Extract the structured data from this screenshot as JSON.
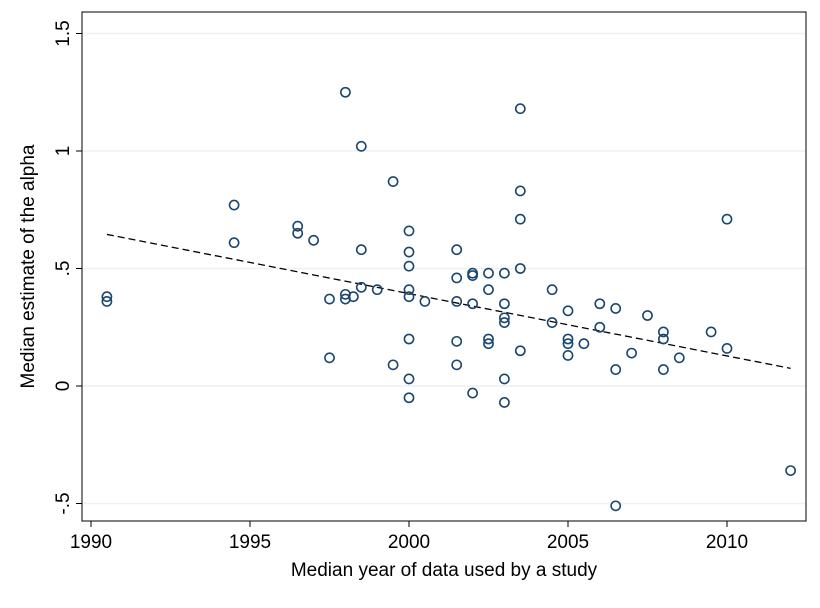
{
  "chart_data": {
    "type": "scatter",
    "title": "",
    "xlabel": "Median year of data used by a study",
    "ylabel": "Median estimate of the alpha",
    "xlim": [
      1990,
      2012
    ],
    "ylim": [
      -0.5,
      1.5
    ],
    "x_ticks": [
      1990,
      1995,
      2000,
      2005,
      2010
    ],
    "x_tick_labels": [
      "1990",
      "1995",
      "2000",
      "2005",
      "2010"
    ],
    "y_ticks": [
      -0.5,
      0,
      0.5,
      1,
      1.5
    ],
    "y_tick_labels": [
      "-.5",
      "0",
      ".5",
      "1",
      "1.5"
    ],
    "grid": "horizontal",
    "legend": "none",
    "colors": {
      "markers": "#1a476f",
      "fit_line": "#000000",
      "grid": "#eaf2f3",
      "frame": "#000000"
    },
    "series": [
      {
        "points": [
          {
            "x": 1990.5,
            "y": 0.38
          },
          {
            "x": 1990.5,
            "y": 0.36
          },
          {
            "x": 1994.5,
            "y": 0.77
          },
          {
            "x": 1994.5,
            "y": 0.61
          },
          {
            "x": 1996.5,
            "y": 0.68
          },
          {
            "x": 1996.5,
            "y": 0.65
          },
          {
            "x": 1997,
            "y": 0.62
          },
          {
            "x": 1997.5,
            "y": 0.37
          },
          {
            "x": 1997.5,
            "y": 0.12
          },
          {
            "x": 1998,
            "y": 1.25
          },
          {
            "x": 1998,
            "y": 0.39
          },
          {
            "x": 1998,
            "y": 0.37
          },
          {
            "x": 1998.25,
            "y": 0.38
          },
          {
            "x": 1998.5,
            "y": 1.02
          },
          {
            "x": 1998.5,
            "y": 0.58
          },
          {
            "x": 1998.5,
            "y": 0.42
          },
          {
            "x": 1999,
            "y": 0.41
          },
          {
            "x": 1999.5,
            "y": 0.87
          },
          {
            "x": 1999.5,
            "y": 0.09
          },
          {
            "x": 2000,
            "y": 0.66
          },
          {
            "x": 2000,
            "y": 0.57
          },
          {
            "x": 2000,
            "y": 0.51
          },
          {
            "x": 2000,
            "y": 0.41
          },
          {
            "x": 2000,
            "y": 0.38
          },
          {
            "x": 2000,
            "y": 0.2
          },
          {
            "x": 2000,
            "y": 0.03
          },
          {
            "x": 2000,
            "y": -0.05
          },
          {
            "x": 2000.5,
            "y": 0.36
          },
          {
            "x": 2001.5,
            "y": 0.58
          },
          {
            "x": 2001.5,
            "y": 0.46
          },
          {
            "x": 2001.5,
            "y": 0.36
          },
          {
            "x": 2001.5,
            "y": 0.19
          },
          {
            "x": 2001.5,
            "y": 0.09
          },
          {
            "x": 2002,
            "y": 0.48
          },
          {
            "x": 2002,
            "y": 0.47
          },
          {
            "x": 2002,
            "y": 0.35
          },
          {
            "x": 2002,
            "y": -0.03
          },
          {
            "x": 2002.5,
            "y": 0.48
          },
          {
            "x": 2002.5,
            "y": 0.41
          },
          {
            "x": 2002.5,
            "y": 0.2
          },
          {
            "x": 2002.5,
            "y": 0.18
          },
          {
            "x": 2003,
            "y": 0.48
          },
          {
            "x": 2003,
            "y": 0.35
          },
          {
            "x": 2003,
            "y": 0.29
          },
          {
            "x": 2003,
            "y": 0.27
          },
          {
            "x": 2003,
            "y": 0.03
          },
          {
            "x": 2003,
            "y": -0.07
          },
          {
            "x": 2003.5,
            "y": 1.18
          },
          {
            "x": 2003.5,
            "y": 0.83
          },
          {
            "x": 2003.5,
            "y": 0.71
          },
          {
            "x": 2003.5,
            "y": 0.5
          },
          {
            "x": 2003.5,
            "y": 0.15
          },
          {
            "x": 2004.5,
            "y": 0.41
          },
          {
            "x": 2004.5,
            "y": 0.27
          },
          {
            "x": 2005,
            "y": 0.32
          },
          {
            "x": 2005,
            "y": 0.2
          },
          {
            "x": 2005,
            "y": 0.18
          },
          {
            "x": 2005,
            "y": 0.13
          },
          {
            "x": 2005.5,
            "y": 0.18
          },
          {
            "x": 2006,
            "y": 0.35
          },
          {
            "x": 2006,
            "y": 0.25
          },
          {
            "x": 2006.5,
            "y": 0.33
          },
          {
            "x": 2006.5,
            "y": 0.07
          },
          {
            "x": 2006.5,
            "y": -0.51
          },
          {
            "x": 2007,
            "y": 0.14
          },
          {
            "x": 2007.5,
            "y": 0.3
          },
          {
            "x": 2008,
            "y": 0.23
          },
          {
            "x": 2008,
            "y": 0.2
          },
          {
            "x": 2008,
            "y": 0.07
          },
          {
            "x": 2008.5,
            "y": 0.12
          },
          {
            "x": 2009.5,
            "y": 0.23
          },
          {
            "x": 2010,
            "y": 0.71
          },
          {
            "x": 2010,
            "y": 0.16
          },
          {
            "x": 2012,
            "y": -0.36
          }
        ]
      }
    ],
    "fit_line": {
      "style": "dashed",
      "points": [
        {
          "x": 1990.5,
          "y": 0.645
        },
        {
          "x": 2012,
          "y": 0.075
        }
      ]
    }
  }
}
